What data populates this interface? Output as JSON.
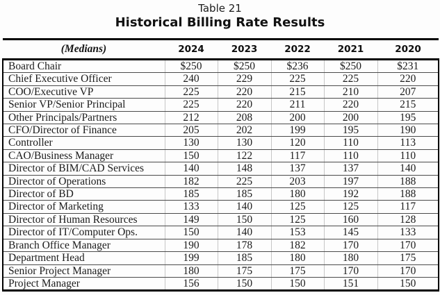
{
  "page": {
    "caption": "Table 21",
    "title": "Historical Billing Rate Results"
  },
  "table": {
    "corner_label": "(Medians)",
    "years": [
      "2024",
      "2023",
      "2022",
      "2021",
      "2020"
    ],
    "rows": [
      {
        "label": "Board Chair",
        "values": [
          "$250",
          "$250",
          "$236",
          "$250",
          "$231"
        ]
      },
      {
        "label": "Chief Executive Officer",
        "values": [
          "240",
          "229",
          "225",
          "225",
          "220"
        ]
      },
      {
        "label": "COO/Executive VP",
        "values": [
          "225",
          "220",
          "215",
          "210",
          "207"
        ]
      },
      {
        "label": "Senior VP/Senior Principal",
        "values": [
          "225",
          "220",
          "211",
          "220",
          "215"
        ]
      },
      {
        "label": "Other Principals/Partners",
        "values": [
          "212",
          "208",
          "200",
          "200",
          "195"
        ]
      },
      {
        "label": "CFO/Director of Finance",
        "values": [
          "205",
          "202",
          "199",
          "195",
          "190"
        ]
      },
      {
        "label": "Controller",
        "values": [
          "130",
          "130",
          "120",
          "110",
          "113"
        ]
      },
      {
        "label": "CAO/Business Manager",
        "values": [
          "150",
          "122",
          "117",
          "110",
          "110"
        ]
      },
      {
        "label": "Director of BIM/CAD Services",
        "values": [
          "140",
          "148",
          "137",
          "137",
          "140"
        ]
      },
      {
        "label": "Director of Operations",
        "values": [
          "182",
          "225",
          "203",
          "197",
          "188"
        ]
      },
      {
        "label": "Director of BD",
        "values": [
          "185",
          "185",
          "180",
          "192",
          "188"
        ]
      },
      {
        "label": "Director of Marketing",
        "values": [
          "133",
          "140",
          "125",
          "125",
          "117"
        ]
      },
      {
        "label": "Director of Human Resources",
        "values": [
          "149",
          "150",
          "125",
          "160",
          "128"
        ]
      },
      {
        "label": "Director of IT/Computer Ops.",
        "values": [
          "150",
          "140",
          "153",
          "145",
          "133"
        ]
      },
      {
        "label": "Branch Office Manager",
        "values": [
          "190",
          "178",
          "182",
          "170",
          "170"
        ]
      },
      {
        "label": "Department Head",
        "values": [
          "199",
          "185",
          "180",
          "180",
          "175"
        ]
      },
      {
        "label": "Senior Project Manager",
        "values": [
          "180",
          "175",
          "175",
          "170",
          "170"
        ]
      },
      {
        "label": "Project Manager",
        "values": [
          "156",
          "150",
          "150",
          "151",
          "150"
        ]
      }
    ]
  },
  "colors": {
    "background": "#fdfdfd",
    "text": "#1b1b1b",
    "heavy_border": "#000000",
    "row_rule": "#4a4a4a",
    "column_rule_light": "#c6c6c6"
  }
}
